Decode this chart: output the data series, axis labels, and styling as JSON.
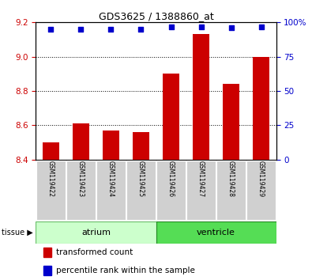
{
  "title": "GDS3625 / 1388860_at",
  "samples": [
    "GSM119422",
    "GSM119423",
    "GSM119424",
    "GSM119425",
    "GSM119426",
    "GSM119427",
    "GSM119428",
    "GSM119429"
  ],
  "bar_values": [
    8.5,
    8.61,
    8.57,
    8.56,
    8.9,
    9.13,
    8.84,
    9.0
  ],
  "dot_positions": [
    95,
    95,
    95,
    95,
    97,
    97,
    96,
    97
  ],
  "ylim_left": [
    8.4,
    9.2
  ],
  "ylim_right": [
    0,
    100
  ],
  "yticks_left": [
    8.4,
    8.6,
    8.8,
    9.0,
    9.2
  ],
  "yticks_right": [
    0,
    25,
    50,
    75,
    100
  ],
  "ytick_right_labels": [
    "0",
    "25",
    "50",
    "75",
    "100%"
  ],
  "bar_color": "#cc0000",
  "dot_color": "#0000cc",
  "bar_width": 0.55,
  "tissue_label": "tissue",
  "legend_bar_label": "transformed count",
  "legend_dot_label": "percentile rank within the sample",
  "atrium_color": "#ccffcc",
  "ventricle_color": "#55dd55",
  "label_area_color": "#d0d0d0",
  "left_tick_color": "#cc0000",
  "right_tick_color": "#0000cc"
}
